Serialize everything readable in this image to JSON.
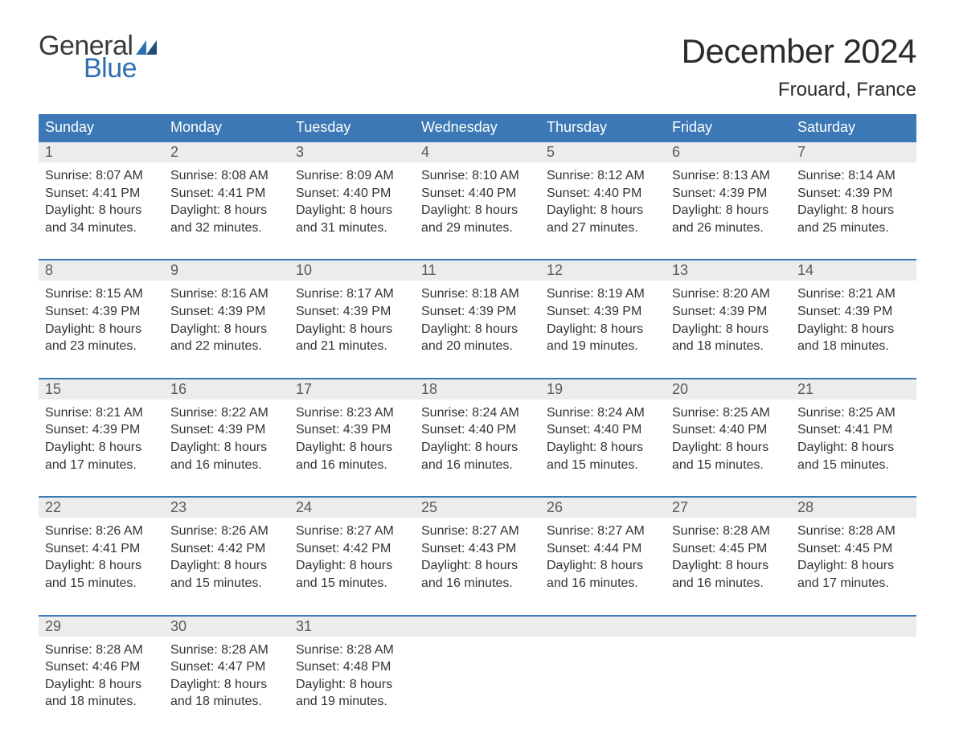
{
  "brand": {
    "word1": "General",
    "word2": "Blue",
    "flag_color": "#2e6fb3",
    "text_gray": "#3a3a3a"
  },
  "header": {
    "month_title": "December 2024",
    "location": "Frouard, France"
  },
  "colors": {
    "header_bg": "#3b78b5",
    "header_text": "#ffffff",
    "daynum_bg": "#ececec",
    "daynum_text": "#5a5a5a",
    "body_text": "#333333",
    "week_border": "#3b78b5",
    "page_bg": "#ffffff"
  },
  "typography": {
    "month_title_fontsize": 42,
    "location_fontsize": 24,
    "weekday_fontsize": 18,
    "daynum_fontsize": 18,
    "body_fontsize": 16,
    "logo_fontsize": 34
  },
  "weekdays": [
    "Sunday",
    "Monday",
    "Tuesday",
    "Wednesday",
    "Thursday",
    "Friday",
    "Saturday"
  ],
  "weeks": [
    [
      {
        "n": "1",
        "sunrise": "Sunrise: 8:07 AM",
        "sunset": "Sunset: 4:41 PM",
        "day1": "Daylight: 8 hours",
        "day2": "and 34 minutes."
      },
      {
        "n": "2",
        "sunrise": "Sunrise: 8:08 AM",
        "sunset": "Sunset: 4:41 PM",
        "day1": "Daylight: 8 hours",
        "day2": "and 32 minutes."
      },
      {
        "n": "3",
        "sunrise": "Sunrise: 8:09 AM",
        "sunset": "Sunset: 4:40 PM",
        "day1": "Daylight: 8 hours",
        "day2": "and 31 minutes."
      },
      {
        "n": "4",
        "sunrise": "Sunrise: 8:10 AM",
        "sunset": "Sunset: 4:40 PM",
        "day1": "Daylight: 8 hours",
        "day2": "and 29 minutes."
      },
      {
        "n": "5",
        "sunrise": "Sunrise: 8:12 AM",
        "sunset": "Sunset: 4:40 PM",
        "day1": "Daylight: 8 hours",
        "day2": "and 27 minutes."
      },
      {
        "n": "6",
        "sunrise": "Sunrise: 8:13 AM",
        "sunset": "Sunset: 4:39 PM",
        "day1": "Daylight: 8 hours",
        "day2": "and 26 minutes."
      },
      {
        "n": "7",
        "sunrise": "Sunrise: 8:14 AM",
        "sunset": "Sunset: 4:39 PM",
        "day1": "Daylight: 8 hours",
        "day2": "and 25 minutes."
      }
    ],
    [
      {
        "n": "8",
        "sunrise": "Sunrise: 8:15 AM",
        "sunset": "Sunset: 4:39 PM",
        "day1": "Daylight: 8 hours",
        "day2": "and 23 minutes."
      },
      {
        "n": "9",
        "sunrise": "Sunrise: 8:16 AM",
        "sunset": "Sunset: 4:39 PM",
        "day1": "Daylight: 8 hours",
        "day2": "and 22 minutes."
      },
      {
        "n": "10",
        "sunrise": "Sunrise: 8:17 AM",
        "sunset": "Sunset: 4:39 PM",
        "day1": "Daylight: 8 hours",
        "day2": "and 21 minutes."
      },
      {
        "n": "11",
        "sunrise": "Sunrise: 8:18 AM",
        "sunset": "Sunset: 4:39 PM",
        "day1": "Daylight: 8 hours",
        "day2": "and 20 minutes."
      },
      {
        "n": "12",
        "sunrise": "Sunrise: 8:19 AM",
        "sunset": "Sunset: 4:39 PM",
        "day1": "Daylight: 8 hours",
        "day2": "and 19 minutes."
      },
      {
        "n": "13",
        "sunrise": "Sunrise: 8:20 AM",
        "sunset": "Sunset: 4:39 PM",
        "day1": "Daylight: 8 hours",
        "day2": "and 18 minutes."
      },
      {
        "n": "14",
        "sunrise": "Sunrise: 8:21 AM",
        "sunset": "Sunset: 4:39 PM",
        "day1": "Daylight: 8 hours",
        "day2": "and 18 minutes."
      }
    ],
    [
      {
        "n": "15",
        "sunrise": "Sunrise: 8:21 AM",
        "sunset": "Sunset: 4:39 PM",
        "day1": "Daylight: 8 hours",
        "day2": "and 17 minutes."
      },
      {
        "n": "16",
        "sunrise": "Sunrise: 8:22 AM",
        "sunset": "Sunset: 4:39 PM",
        "day1": "Daylight: 8 hours",
        "day2": "and 16 minutes."
      },
      {
        "n": "17",
        "sunrise": "Sunrise: 8:23 AM",
        "sunset": "Sunset: 4:39 PM",
        "day1": "Daylight: 8 hours",
        "day2": "and 16 minutes."
      },
      {
        "n": "18",
        "sunrise": "Sunrise: 8:24 AM",
        "sunset": "Sunset: 4:40 PM",
        "day1": "Daylight: 8 hours",
        "day2": "and 16 minutes."
      },
      {
        "n": "19",
        "sunrise": "Sunrise: 8:24 AM",
        "sunset": "Sunset: 4:40 PM",
        "day1": "Daylight: 8 hours",
        "day2": "and 15 minutes."
      },
      {
        "n": "20",
        "sunrise": "Sunrise: 8:25 AM",
        "sunset": "Sunset: 4:40 PM",
        "day1": "Daylight: 8 hours",
        "day2": "and 15 minutes."
      },
      {
        "n": "21",
        "sunrise": "Sunrise: 8:25 AM",
        "sunset": "Sunset: 4:41 PM",
        "day1": "Daylight: 8 hours",
        "day2": "and 15 minutes."
      }
    ],
    [
      {
        "n": "22",
        "sunrise": "Sunrise: 8:26 AM",
        "sunset": "Sunset: 4:41 PM",
        "day1": "Daylight: 8 hours",
        "day2": "and 15 minutes."
      },
      {
        "n": "23",
        "sunrise": "Sunrise: 8:26 AM",
        "sunset": "Sunset: 4:42 PM",
        "day1": "Daylight: 8 hours",
        "day2": "and 15 minutes."
      },
      {
        "n": "24",
        "sunrise": "Sunrise: 8:27 AM",
        "sunset": "Sunset: 4:42 PM",
        "day1": "Daylight: 8 hours",
        "day2": "and 15 minutes."
      },
      {
        "n": "25",
        "sunrise": "Sunrise: 8:27 AM",
        "sunset": "Sunset: 4:43 PM",
        "day1": "Daylight: 8 hours",
        "day2": "and 16 minutes."
      },
      {
        "n": "26",
        "sunrise": "Sunrise: 8:27 AM",
        "sunset": "Sunset: 4:44 PM",
        "day1": "Daylight: 8 hours",
        "day2": "and 16 minutes."
      },
      {
        "n": "27",
        "sunrise": "Sunrise: 8:28 AM",
        "sunset": "Sunset: 4:45 PM",
        "day1": "Daylight: 8 hours",
        "day2": "and 16 minutes."
      },
      {
        "n": "28",
        "sunrise": "Sunrise: 8:28 AM",
        "sunset": "Sunset: 4:45 PM",
        "day1": "Daylight: 8 hours",
        "day2": "and 17 minutes."
      }
    ],
    [
      {
        "n": "29",
        "sunrise": "Sunrise: 8:28 AM",
        "sunset": "Sunset: 4:46 PM",
        "day1": "Daylight: 8 hours",
        "day2": "and 18 minutes."
      },
      {
        "n": "30",
        "sunrise": "Sunrise: 8:28 AM",
        "sunset": "Sunset: 4:47 PM",
        "day1": "Daylight: 8 hours",
        "day2": "and 18 minutes."
      },
      {
        "n": "31",
        "sunrise": "Sunrise: 8:28 AM",
        "sunset": "Sunset: 4:48 PM",
        "day1": "Daylight: 8 hours",
        "day2": "and 19 minutes."
      },
      {
        "empty": true
      },
      {
        "empty": true
      },
      {
        "empty": true
      },
      {
        "empty": true
      }
    ]
  ]
}
